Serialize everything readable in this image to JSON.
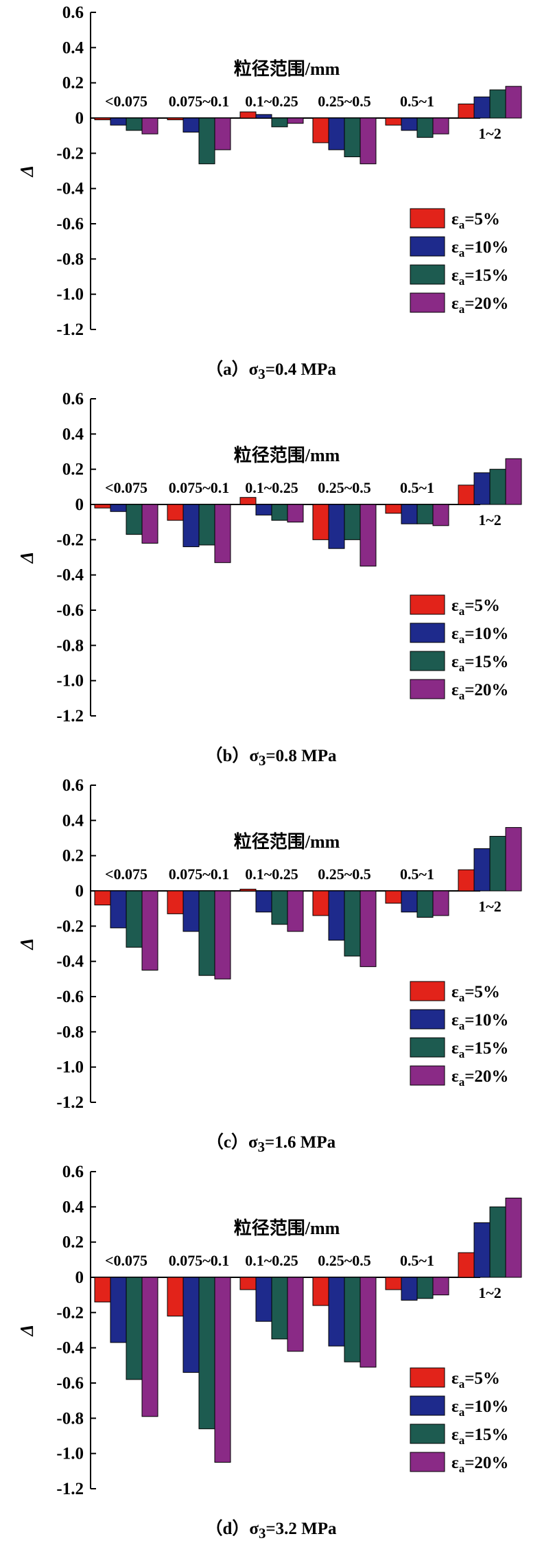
{
  "legend_prefix": "ε",
  "legend_sub": "a",
  "series_colors": [
    "#e2231a",
    "#1e2a8c",
    "#1d5b50",
    "#8a2a86"
  ],
  "chart_data": [
    {
      "type": "bar",
      "panel_tag": "（a）",
      "caption_sym": "σ",
      "caption_sub": "3",
      "caption_val": "=0.4 MPa",
      "category_title": "粒径范围/mm",
      "ylabel": "Δ",
      "ylim": [
        -1.2,
        0.6
      ],
      "yticks": [
        "0.6",
        "0.4",
        "0.2",
        "0",
        "-0.2",
        "-0.4",
        "-0.6",
        "-0.8",
        "-1.0",
        "-1.2"
      ],
      "categories": [
        "<0.075",
        "0.075~0.1",
        "0.1~0.25",
        "0.25~0.5",
        "0.5~1",
        "1~2"
      ],
      "legend_position": "bottom-right",
      "series": [
        {
          "name": "=5%",
          "values": [
            -0.01,
            -0.01,
            0.035,
            -0.14,
            -0.04,
            0.08
          ]
        },
        {
          "name": "=10%",
          "values": [
            -0.04,
            -0.08,
            0.02,
            -0.18,
            -0.07,
            0.12
          ]
        },
        {
          "name": "=15%",
          "values": [
            -0.07,
            -0.26,
            -0.05,
            -0.22,
            -0.11,
            0.16
          ]
        },
        {
          "name": "=20%",
          "values": [
            -0.09,
            -0.18,
            -0.03,
            -0.26,
            -0.09,
            0.18
          ]
        }
      ]
    },
    {
      "type": "bar",
      "panel_tag": "（b）",
      "caption_sym": "σ",
      "caption_sub": "3",
      "caption_val": "=0.8 MPa",
      "category_title": "粒径范围/mm",
      "ylabel": "Δ",
      "ylim": [
        -1.2,
        0.6
      ],
      "yticks": [
        "0.6",
        "0.4",
        "0.2",
        "0",
        "-0.2",
        "-0.4",
        "-0.6",
        "-0.8",
        "-1.0",
        "-1.2"
      ],
      "categories": [
        "<0.075",
        "0.075~0.1",
        "0.1~0.25",
        "0.25~0.5",
        "0.5~1",
        "1~2"
      ],
      "legend_position": "bottom-right",
      "series": [
        {
          "name": "=5%",
          "values": [
            -0.02,
            -0.09,
            0.04,
            -0.2,
            -0.05,
            0.11
          ]
        },
        {
          "name": "=10%",
          "values": [
            -0.04,
            -0.24,
            -0.06,
            -0.25,
            -0.11,
            0.18
          ]
        },
        {
          "name": "=15%",
          "values": [
            -0.17,
            -0.23,
            -0.09,
            -0.2,
            -0.11,
            0.2
          ]
        },
        {
          "name": "=20%",
          "values": [
            -0.22,
            -0.33,
            -0.1,
            -0.35,
            -0.12,
            0.26
          ]
        }
      ]
    },
    {
      "type": "bar",
      "panel_tag": "（c）",
      "caption_sym": "σ",
      "caption_sub": "3",
      "caption_val": "=1.6 MPa",
      "category_title": "粒径范围/mm",
      "ylabel": "Δ",
      "ylim": [
        -1.2,
        0.6
      ],
      "yticks": [
        "0.6",
        "0.4",
        "0.2",
        "0",
        "-0.2",
        "-0.4",
        "-0.6",
        "-0.8",
        "-1.0",
        "-1.2"
      ],
      "categories": [
        "<0.075",
        "0.075~0.1",
        "0.1~0.25",
        "0.25~0.5",
        "0.5~1",
        "1~2"
      ],
      "legend_position": "bottom-right",
      "series": [
        {
          "name": "=5%",
          "values": [
            -0.08,
            -0.13,
            0.01,
            -0.14,
            -0.07,
            0.12
          ]
        },
        {
          "name": "=10%",
          "values": [
            -0.21,
            -0.23,
            -0.12,
            -0.28,
            -0.12,
            0.24
          ]
        },
        {
          "name": "=15%",
          "values": [
            -0.32,
            -0.48,
            -0.19,
            -0.37,
            -0.15,
            0.31
          ]
        },
        {
          "name": "=20%",
          "values": [
            -0.45,
            -0.5,
            -0.23,
            -0.43,
            -0.14,
            0.36
          ]
        }
      ]
    },
    {
      "type": "bar",
      "panel_tag": "（d）",
      "caption_sym": "σ",
      "caption_sub": "3",
      "caption_val": "=3.2 MPa",
      "category_title": "粒径范围/mm",
      "ylabel": "Δ",
      "ylim": [
        -1.2,
        0.6
      ],
      "yticks": [
        "0.6",
        "0.4",
        "0.2",
        "0",
        "-0.2",
        "-0.4",
        "-0.6",
        "-0.8",
        "-1.0",
        "-1.2"
      ],
      "categories": [
        "<0.075",
        "0.075~0.1",
        "0.1~0.25",
        "0.25~0.5",
        "0.5~1",
        "1~2"
      ],
      "legend_position": "bottom-right",
      "series": [
        {
          "name": "=5%",
          "values": [
            -0.14,
            -0.22,
            -0.07,
            -0.16,
            -0.07,
            0.14
          ]
        },
        {
          "name": "=10%",
          "values": [
            -0.37,
            -0.54,
            -0.25,
            -0.39,
            -0.13,
            0.31
          ]
        },
        {
          "name": "=15%",
          "values": [
            -0.58,
            -0.86,
            -0.35,
            -0.48,
            -0.12,
            0.4
          ]
        },
        {
          "name": "=20%",
          "values": [
            -0.79,
            -1.05,
            -0.42,
            -0.51,
            -0.1,
            0.45
          ]
        }
      ]
    }
  ]
}
